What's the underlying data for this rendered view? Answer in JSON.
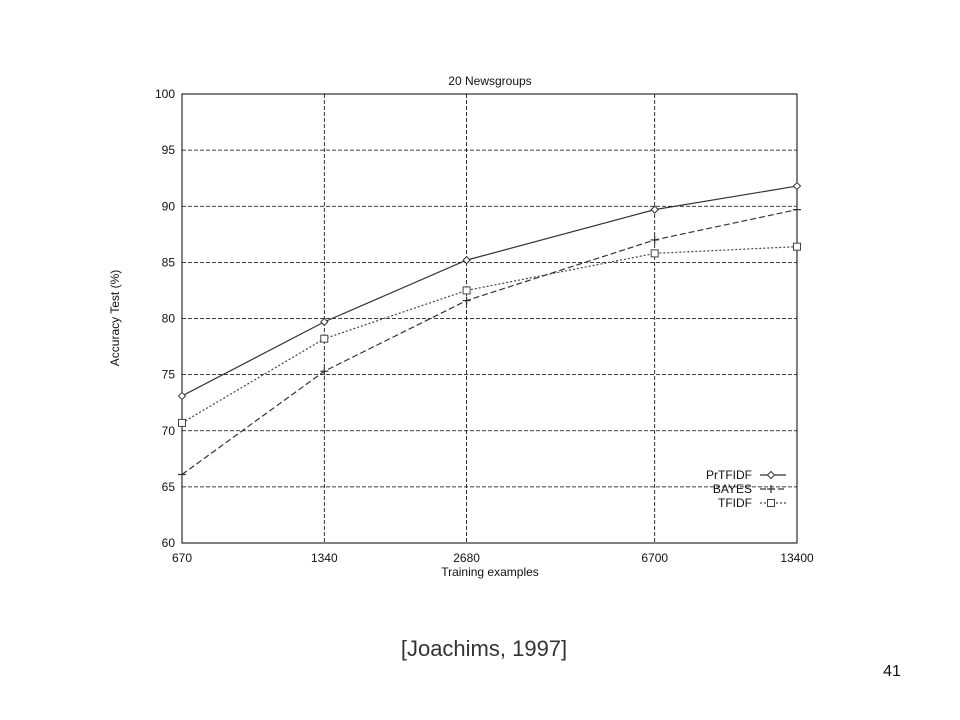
{
  "chart_data": {
    "type": "line",
    "title": "20 Newsgroups",
    "xlabel": "Training examples",
    "ylabel": "Accuracy Test (%)",
    "xscale": "log",
    "x": [
      670,
      1340,
      2680,
      6700,
      13400
    ],
    "xticks": [
      670,
      1340,
      2680,
      6700,
      13400
    ],
    "xlim": [
      670,
      13400
    ],
    "yticks": [
      60,
      65,
      70,
      75,
      80,
      85,
      90,
      95,
      100
    ],
    "ylim": [
      60,
      100
    ],
    "grid": true,
    "legend_position": "bottom-right",
    "series": [
      {
        "name": "PrTFIDF",
        "marker": "diamond",
        "line": "solid",
        "color": "#333333",
        "values": [
          73.1,
          79.7,
          85.2,
          89.7,
          91.8
        ]
      },
      {
        "name": "BAYES",
        "marker": "plus",
        "line": "dashed",
        "color": "#333333",
        "values": [
          66.1,
          75.3,
          81.6,
          87.0,
          89.7
        ]
      },
      {
        "name": "TFIDF",
        "marker": "square",
        "line": "dotted",
        "color": "#444444",
        "values": [
          70.7,
          78.2,
          82.5,
          85.8,
          86.4
        ]
      }
    ]
  },
  "slide": {
    "citation": "[Joachims, 1997]",
    "page_number": "41"
  }
}
